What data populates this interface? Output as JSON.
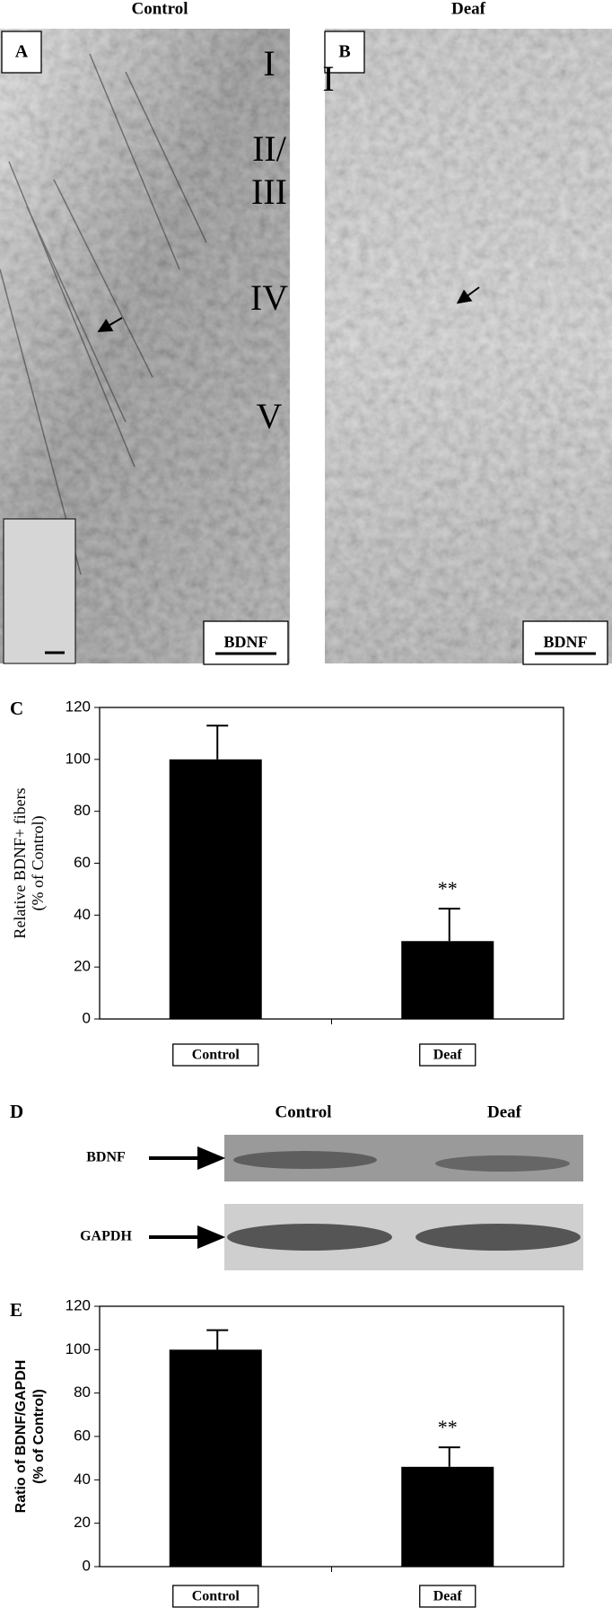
{
  "panels": [
    {
      "label": "A",
      "title": "Control",
      "layers": [
        "I",
        "II/",
        "III",
        "IV",
        "V"
      ],
      "stain": "BDNF"
    },
    {
      "label": "B",
      "title": "Deaf",
      "layers": [
        "I"
      ],
      "stain": "BDNF"
    }
  ],
  "blot": {
    "label": "D",
    "columns": [
      "Control",
      "Deaf"
    ],
    "rows": [
      "BDNF",
      "GAPDH"
    ]
  },
  "chart_data": [
    {
      "type": "bar",
      "panel_label": "C",
      "y_label": [
        "Relative BDNF+ fibers",
        "(% of Control)"
      ],
      "categories": [
        "Control",
        "Deaf"
      ],
      "values": [
        100,
        30
      ],
      "errors": [
        13,
        12.5
      ],
      "significance": {
        "category": "Deaf",
        "text": "**"
      },
      "color": "#000000",
      "ylim": [
        0,
        120
      ],
      "yticks": [
        0,
        20,
        40,
        60,
        80,
        100,
        120
      ]
    },
    {
      "type": "bar",
      "panel_label": "E",
      "y_label": [
        "Ratio of BDNF/GAPDH",
        "(% of Control)"
      ],
      "categories": [
        "Control",
        "Deaf"
      ],
      "values": [
        100,
        46
      ],
      "errors": [
        9,
        9
      ],
      "significance": {
        "category": "Deaf",
        "text": "**"
      },
      "color": "#000000",
      "ylim": [
        0,
        120
      ],
      "yticks": [
        0,
        20,
        40,
        60,
        80,
        100,
        120
      ]
    }
  ]
}
